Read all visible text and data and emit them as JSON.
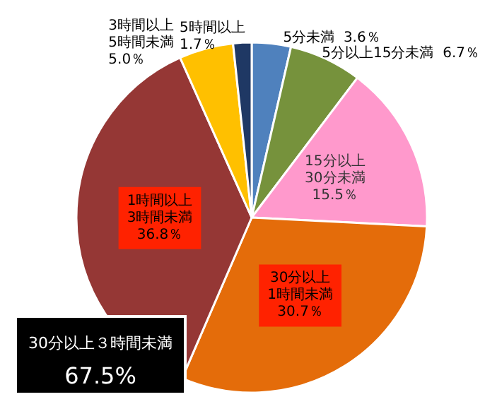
{
  "chart_data": {
    "type": "pie",
    "categories": [
      "5分未満",
      "5分以上15分未満",
      "15分以上\n30分未満",
      "30分以上\n1時間未満",
      "1時間以上\n3時間未満",
      "3時間以上\n5時間未満",
      "5時間以上"
    ],
    "values": [
      3.6,
      6.7,
      15.5,
      30.7,
      36.8,
      5.0,
      1.7
    ],
    "value_labels": [
      "3.6％",
      "6.7％",
      "15.5％",
      "30.7％",
      "36.8％",
      "5.0％",
      "1.7％"
    ],
    "colors": [
      "#4f81bd",
      "#76923c",
      "#ff99cc",
      "#e46c0a",
      "#953735",
      "#ffc000",
      "#1f3864"
    ],
    "annotations": [
      "30分以上３時間未満\n67.5%"
    ]
  }
}
